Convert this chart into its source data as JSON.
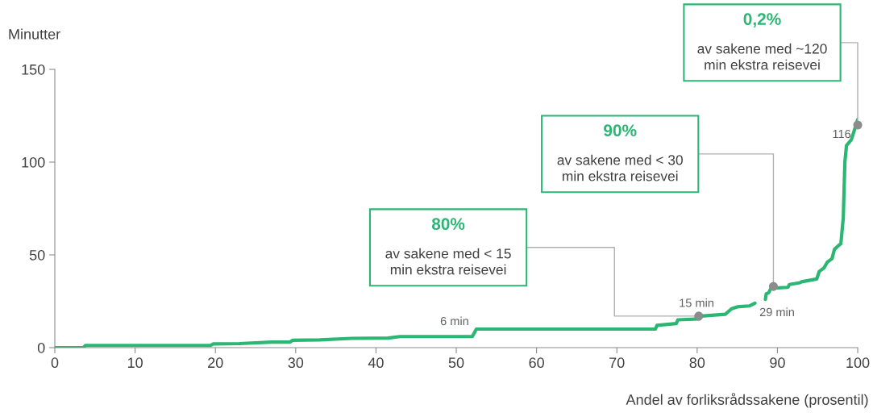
{
  "chart_data": {
    "type": "line",
    "ylabel": "Minutter",
    "xlabel": "Andel av forliksrådssakene (prosentil)",
    "xlim": [
      0,
      100
    ],
    "xticks": [
      0,
      10,
      20,
      30,
      40,
      50,
      60,
      70,
      80,
      90,
      100
    ],
    "ylim": [
      0,
      150
    ],
    "yticks": [
      0,
      50,
      100,
      150
    ],
    "grid": false,
    "legend": false,
    "marker": "none",
    "line_style": "solid",
    "series": [
      {
        "color": "#2bb673",
        "x": [
          0,
          3.6,
          3.8,
          19.4,
          19.7,
          23,
          27,
          29.3,
          29.6,
          33,
          37,
          41.5,
          43,
          52,
          52.5,
          74.8,
          75,
          77.4,
          77.6,
          80.3,
          80.5,
          83.5,
          84.3,
          85,
          86.5,
          87.2,
          87.8,
          88.5,
          88.6,
          88.9,
          89.2,
          91.3,
          91.5,
          92.8,
          93,
          94.9,
          95.2,
          95.8,
          96.2,
          96.8,
          97.1,
          97.6,
          97.9,
          98.2,
          98.4,
          98.6,
          99.2,
          100
        ],
        "values": [
          0,
          0,
          1.2,
          1.2,
          2,
          2.2,
          3,
          3,
          4,
          4.2,
          5,
          5.2,
          6,
          6,
          10,
          10,
          12,
          13,
          15,
          15.5,
          17,
          18,
          21,
          22,
          22.5,
          24,
          null,
          26,
          29,
          29.5,
          32,
          32.5,
          34,
          35,
          35.5,
          37,
          41,
          43,
          46,
          48,
          53,
          55,
          56,
          70,
          100,
          109,
          112,
          123
        ]
      }
    ],
    "annotations": [
      {
        "text": "80%\nav sakene med < 15\nmin ekstra reisevei",
        "x": 80.2,
        "y": 17
      },
      {
        "text": "90%\nav sakene med < 30\nmin ekstra reisevei",
        "x": 89.5,
        "y": 33
      },
      {
        "text": "0,2%\nav sakene med ~120\nmin ekstra reisevei",
        "x": 100,
        "y": 120
      },
      {
        "text": "6 min",
        "x": 52,
        "y": 6
      },
      {
        "text": "15 min",
        "x": 80.2,
        "y": 17
      },
      {
        "text": "29 min",
        "x": 87.2,
        "y": 24
      },
      {
        "text": "116",
        "x": 100,
        "y": 120
      }
    ]
  }
}
